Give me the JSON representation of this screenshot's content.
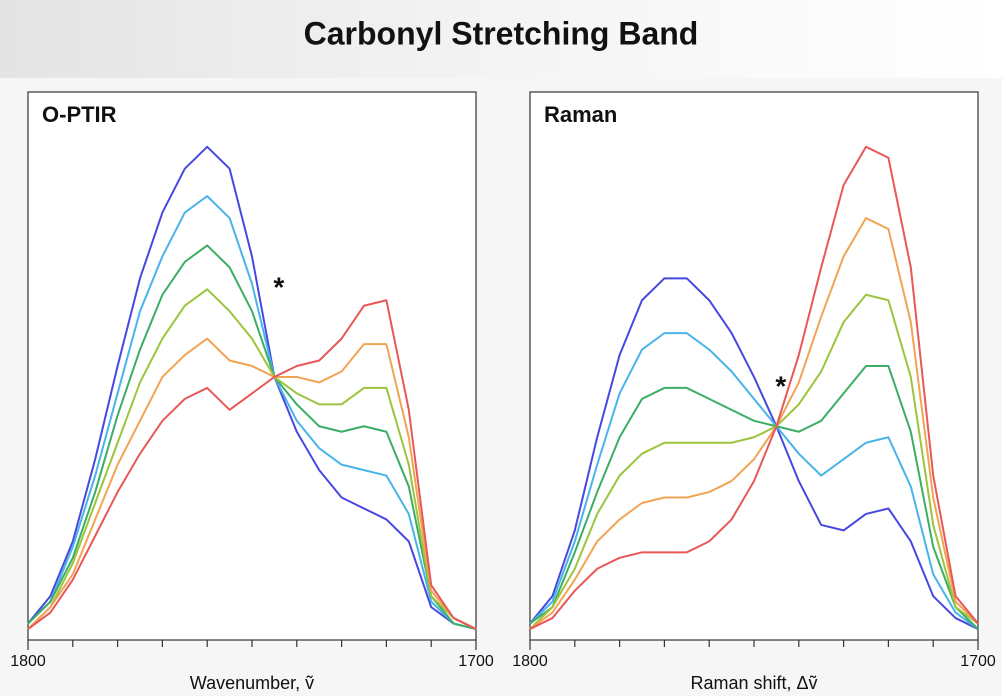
{
  "title": "Carbonyl Stretching Band",
  "chart_data": [
    {
      "type": "line",
      "title": "O-PTIR",
      "xlabel": "Wavenumber, ṽ",
      "x": [
        1800,
        1795,
        1790,
        1785,
        1780,
        1775,
        1770,
        1765,
        1760,
        1755,
        1750,
        1745,
        1740,
        1735,
        1730,
        1725,
        1720,
        1715,
        1710,
        1705,
        1700
      ],
      "xlim": [
        1800,
        1700
      ],
      "xticks": [
        1800,
        1700
      ],
      "minor_xticks": [
        1790,
        1780,
        1770,
        1760,
        1750,
        1740,
        1730,
        1720,
        1710
      ],
      "ylim": [
        0,
        1
      ],
      "series": [
        {
          "color": "#4848e0",
          "values": [
            0.03,
            0.08,
            0.18,
            0.33,
            0.5,
            0.66,
            0.78,
            0.86,
            0.9,
            0.86,
            0.7,
            0.48,
            0.38,
            0.31,
            0.26,
            0.24,
            0.22,
            0.18,
            0.06,
            0.03,
            0.02
          ]
        },
        {
          "color": "#48b4e8",
          "values": [
            0.03,
            0.07,
            0.17,
            0.3,
            0.45,
            0.6,
            0.7,
            0.78,
            0.81,
            0.77,
            0.65,
            0.48,
            0.4,
            0.35,
            0.32,
            0.31,
            0.3,
            0.23,
            0.07,
            0.03,
            0.02
          ]
        },
        {
          "color": "#3cae64",
          "values": [
            0.03,
            0.07,
            0.15,
            0.27,
            0.41,
            0.53,
            0.63,
            0.69,
            0.72,
            0.68,
            0.6,
            0.48,
            0.43,
            0.39,
            0.38,
            0.39,
            0.38,
            0.28,
            0.08,
            0.03,
            0.02
          ]
        },
        {
          "color": "#9cc43c",
          "values": [
            0.02,
            0.06,
            0.14,
            0.25,
            0.36,
            0.47,
            0.55,
            0.61,
            0.64,
            0.6,
            0.55,
            0.48,
            0.45,
            0.43,
            0.43,
            0.46,
            0.46,
            0.32,
            0.08,
            0.04,
            0.02
          ]
        },
        {
          "color": "#f0a454",
          "values": [
            0.02,
            0.06,
            0.12,
            0.22,
            0.32,
            0.4,
            0.48,
            0.52,
            0.55,
            0.51,
            0.5,
            0.48,
            0.48,
            0.47,
            0.49,
            0.54,
            0.54,
            0.37,
            0.09,
            0.04,
            0.02
          ]
        },
        {
          "color": "#e85858",
          "values": [
            0.02,
            0.05,
            0.11,
            0.19,
            0.27,
            0.34,
            0.4,
            0.44,
            0.46,
            0.42,
            0.45,
            0.48,
            0.5,
            0.51,
            0.55,
            0.61,
            0.62,
            0.42,
            0.1,
            0.04,
            0.02
          ]
        }
      ],
      "annotations": [
        {
          "text": "*",
          "x": 1744,
          "y": 0.64
        }
      ]
    },
    {
      "type": "line",
      "title": "Raman",
      "xlabel": "Raman shift, Δṽ",
      "x": [
        1800,
        1795,
        1790,
        1785,
        1780,
        1775,
        1770,
        1765,
        1760,
        1755,
        1750,
        1745,
        1740,
        1735,
        1730,
        1725,
        1720,
        1715,
        1710,
        1705,
        1700
      ],
      "xlim": [
        1800,
        1700
      ],
      "xticks": [
        1800,
        1700
      ],
      "minor_xticks": [
        1790,
        1780,
        1770,
        1760,
        1750,
        1740,
        1730,
        1720,
        1710
      ],
      "ylim": [
        0,
        1
      ],
      "series": [
        {
          "color": "#4848e0",
          "values": [
            0.03,
            0.08,
            0.2,
            0.37,
            0.52,
            0.62,
            0.66,
            0.66,
            0.62,
            0.56,
            0.48,
            0.39,
            0.29,
            0.21,
            0.2,
            0.23,
            0.24,
            0.18,
            0.08,
            0.04,
            0.02
          ]
        },
        {
          "color": "#48b4e8",
          "values": [
            0.03,
            0.07,
            0.18,
            0.32,
            0.45,
            0.53,
            0.56,
            0.56,
            0.53,
            0.49,
            0.44,
            0.39,
            0.34,
            0.3,
            0.33,
            0.36,
            0.37,
            0.28,
            0.12,
            0.05,
            0.02
          ]
        },
        {
          "color": "#3cae64",
          "values": [
            0.03,
            0.06,
            0.16,
            0.27,
            0.37,
            0.44,
            0.46,
            0.46,
            0.44,
            0.42,
            0.4,
            0.39,
            0.38,
            0.4,
            0.45,
            0.5,
            0.5,
            0.38,
            0.17,
            0.06,
            0.02
          ]
        },
        {
          "color": "#9cc43c",
          "values": [
            0.02,
            0.06,
            0.13,
            0.23,
            0.3,
            0.34,
            0.36,
            0.36,
            0.36,
            0.36,
            0.37,
            0.39,
            0.43,
            0.49,
            0.58,
            0.63,
            0.62,
            0.48,
            0.21,
            0.06,
            0.03
          ]
        },
        {
          "color": "#f0a454",
          "values": [
            0.02,
            0.05,
            0.11,
            0.18,
            0.22,
            0.25,
            0.26,
            0.26,
            0.27,
            0.29,
            0.33,
            0.39,
            0.47,
            0.59,
            0.7,
            0.77,
            0.75,
            0.58,
            0.26,
            0.07,
            0.03
          ]
        },
        {
          "color": "#e85858",
          "values": [
            0.02,
            0.04,
            0.09,
            0.13,
            0.15,
            0.16,
            0.16,
            0.16,
            0.18,
            0.22,
            0.29,
            0.39,
            0.52,
            0.68,
            0.83,
            0.9,
            0.88,
            0.68,
            0.3,
            0.08,
            0.03
          ]
        }
      ],
      "annotations": [
        {
          "text": "*",
          "x": 1744,
          "y": 0.46
        }
      ]
    }
  ]
}
